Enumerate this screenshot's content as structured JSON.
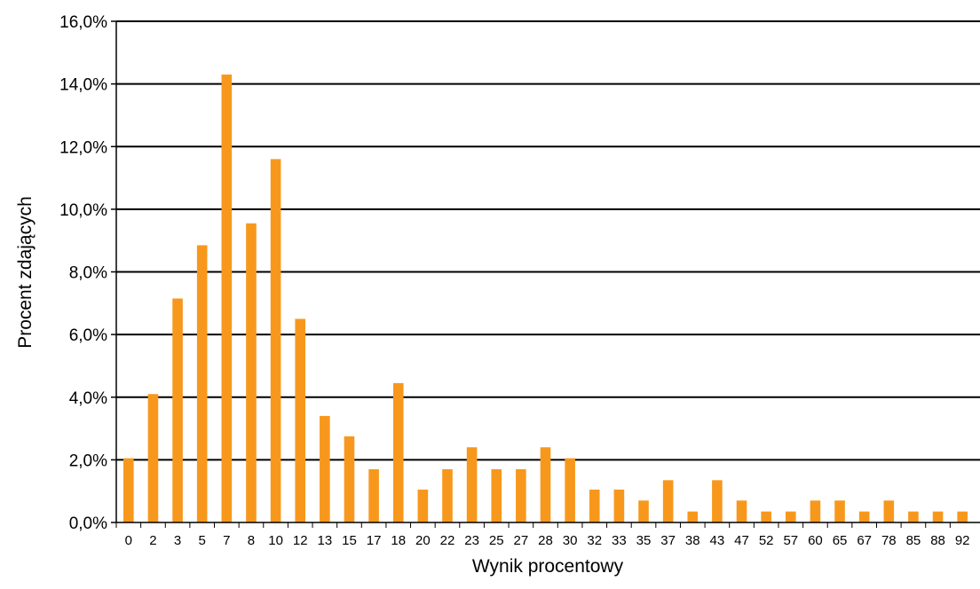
{
  "chart_data": {
    "type": "bar",
    "title": "",
    "xlabel": "Wynik procentowy",
    "ylabel": "Procent zdających",
    "ylim": [
      0,
      16
    ],
    "y_ticks": [
      "0,0%",
      "2,0%",
      "4,0%",
      "6,0%",
      "8,0%",
      "10,0%",
      "12,0%",
      "14,0%",
      "16,0%"
    ],
    "grid": true,
    "legend": "none",
    "bar_color": "#F7981D",
    "categories": [
      "0",
      "2",
      "3",
      "5",
      "7",
      "8",
      "10",
      "12",
      "13",
      "15",
      "17",
      "18",
      "20",
      "22",
      "23",
      "25",
      "27",
      "28",
      "30",
      "32",
      "33",
      "35",
      "37",
      "38",
      "43",
      "47",
      "52",
      "57",
      "60",
      "65",
      "67",
      "78",
      "85",
      "88",
      "92"
    ],
    "values": [
      2.05,
      4.1,
      7.15,
      8.85,
      14.3,
      9.55,
      11.6,
      6.5,
      3.4,
      2.75,
      1.7,
      4.45,
      1.05,
      1.7,
      2.4,
      1.7,
      1.7,
      2.4,
      2.05,
      1.05,
      1.05,
      0.7,
      1.35,
      0.35,
      1.35,
      0.7,
      0.35,
      0.35,
      0.7,
      0.7,
      0.35,
      0.7,
      0.35,
      0.35,
      0.35
    ]
  }
}
